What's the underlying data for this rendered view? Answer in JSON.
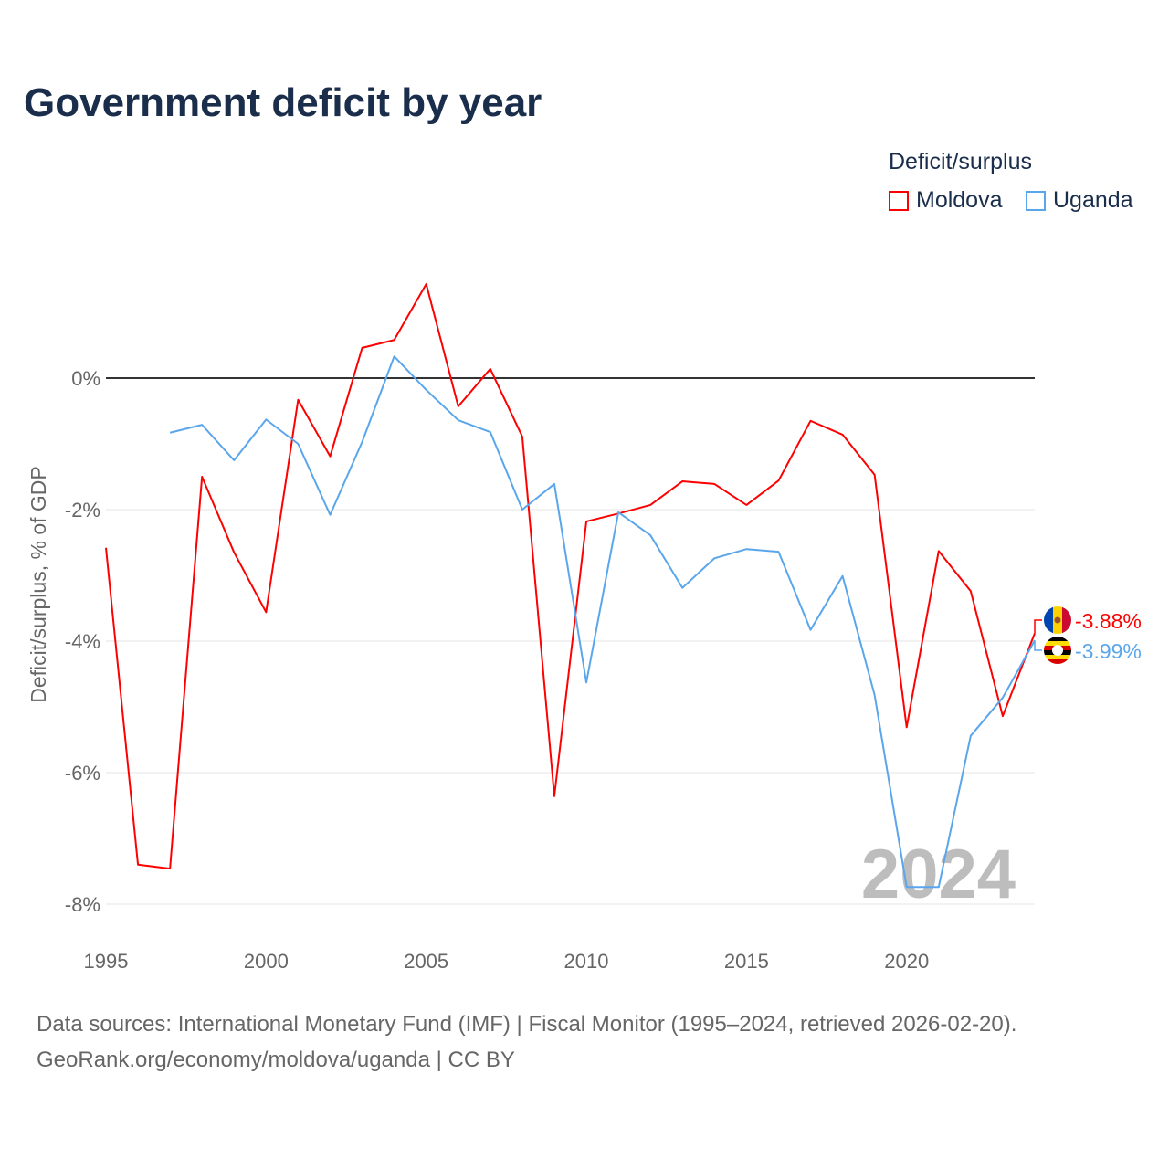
{
  "chart_data": {
    "type": "line",
    "title": "Government deficit by year",
    "ylabel": "Deficit/surplus, % of GDP",
    "xlabel": "",
    "xlim": [
      1995,
      2024
    ],
    "ylim": [
      -8,
      1.5
    ],
    "x_ticks": [
      1995,
      2000,
      2005,
      2010,
      2015,
      2020
    ],
    "x_tick_labels": [
      "1995",
      "2000",
      "2005",
      "2010",
      "2015",
      "2020"
    ],
    "y_ticks": [
      0,
      -2,
      -4,
      -6,
      -8
    ],
    "y_tick_labels": [
      "0%",
      "-2%",
      "-4%",
      "-6%",
      "-8%"
    ],
    "grid": true,
    "legend_title": "Deficit/surplus",
    "legend_position": "top-right",
    "watermark_year": "2024",
    "series": [
      {
        "name": "Moldova",
        "color": "#ff0000",
        "end_label": "-3.88%",
        "x": [
          1995,
          1996,
          1997,
          1998,
          1999,
          2000,
          2001,
          2002,
          2003,
          2004,
          2005,
          2006,
          2007,
          2008,
          2009,
          2010,
          2011,
          2012,
          2013,
          2014,
          2015,
          2016,
          2017,
          2018,
          2019,
          2020,
          2021,
          2022,
          2023,
          2024
        ],
        "values": [
          -2.58,
          -7.4,
          -7.46,
          -1.5,
          -2.65,
          -3.56,
          -0.33,
          -1.19,
          0.46,
          0.58,
          1.43,
          -0.43,
          0.14,
          -0.89,
          -6.36,
          -2.18,
          -2.06,
          -1.93,
          -1.57,
          -1.61,
          -1.93,
          -1.56,
          -0.65,
          -0.86,
          -1.47,
          -5.31,
          -2.63,
          -3.24,
          -5.14,
          -3.88
        ]
      },
      {
        "name": "Uganda",
        "color": "#5aa6ec",
        "end_label": "-3.99%",
        "x": [
          1997,
          1998,
          1999,
          2000,
          2001,
          2002,
          2003,
          2004,
          2005,
          2006,
          2007,
          2008,
          2009,
          2010,
          2011,
          2012,
          2013,
          2014,
          2015,
          2016,
          2017,
          2018,
          2019,
          2020,
          2021,
          2022,
          2023,
          2024
        ],
        "values": [
          -0.83,
          -0.71,
          -1.25,
          -0.63,
          -1.0,
          -2.08,
          -0.97,
          0.33,
          -0.18,
          -0.64,
          -0.82,
          -2.0,
          -1.61,
          -4.63,
          -2.04,
          -2.39,
          -3.19,
          -2.74,
          -2.6,
          -2.64,
          -3.83,
          -3.01,
          -4.82,
          -7.74,
          -7.74,
          -5.44,
          -4.86,
          -3.99
        ]
      }
    ]
  },
  "footer": {
    "line1": "Data sources: International Monetary Fund (IMF) | Fiscal Monitor (1995–2024, retrieved 2026-02-20).",
    "line2": "GeoRank.org/economy/moldova/uganda | CC BY"
  }
}
